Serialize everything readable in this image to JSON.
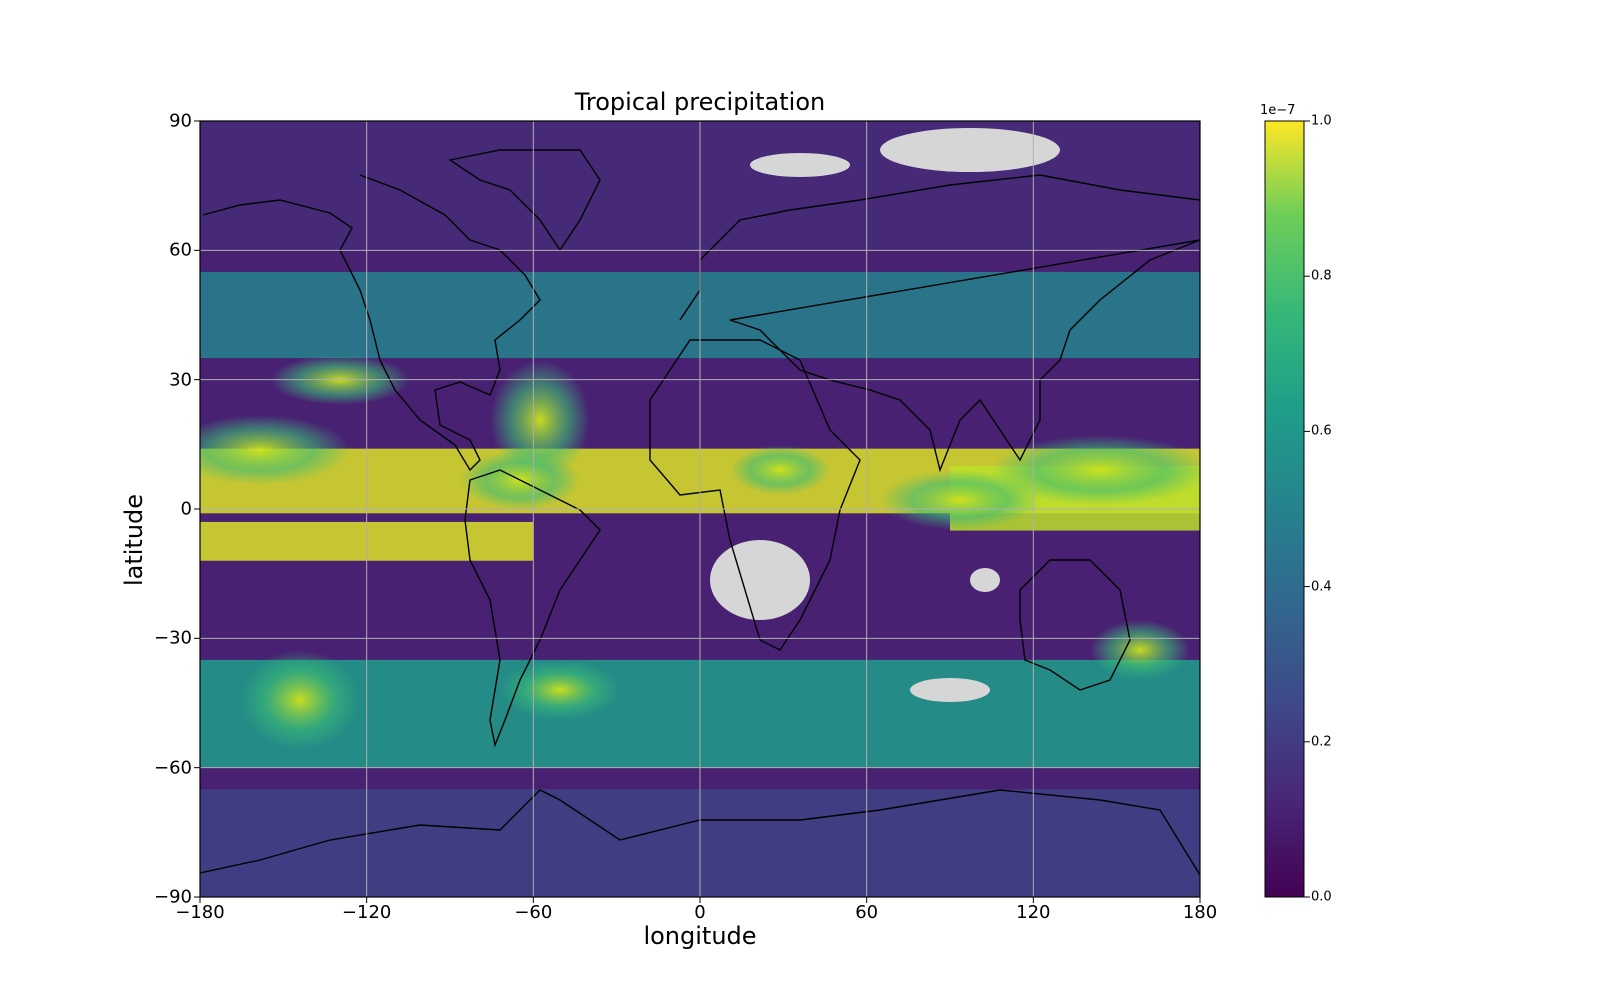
{
  "chart_data": {
    "type": "heatmap",
    "title": "Tropical precipitation",
    "xlabel": "longitude",
    "ylabel": "latitude",
    "xlim": [
      -180,
      180
    ],
    "ylim": [
      -90,
      90
    ],
    "x_ticks": [
      "−180",
      "−120",
      "−60",
      "0",
      "60",
      "120",
      "180"
    ],
    "x_tick_values": [
      -180,
      -120,
      -60,
      0,
      60,
      120,
      180
    ],
    "y_ticks": [
      "90",
      "60",
      "30",
      "0",
      "−30",
      "−60",
      "−90"
    ],
    "y_tick_values": [
      90,
      60,
      30,
      0,
      -30,
      -60,
      -90
    ],
    "grid": true,
    "colormap": "viridis",
    "missing_value_color": "#d6d6d6",
    "colorbar": {
      "placement": "right",
      "multiplier": "1e−7",
      "ticks": [
        "0.0",
        "0.2",
        "0.4",
        "0.6",
        "0.8",
        "1.0"
      ],
      "tick_values": [
        0.0,
        0.2,
        0.4,
        0.6,
        0.8,
        1.0
      ],
      "range": [
        0.0,
        1.0
      ]
    },
    "bands": [
      {
        "lon": [
          -180,
          180
        ],
        "lat": [
          -1,
          14
        ],
        "value": 0.95
      },
      {
        "lon": [
          -180,
          -60
        ],
        "lat": [
          -12,
          -3
        ],
        "value": 0.95
      },
      {
        "lon": [
          90,
          180
        ],
        "lat": [
          -5,
          10
        ],
        "value": 0.9
      },
      {
        "lon": [
          -180,
          180
        ],
        "lat": [
          -60,
          -35
        ],
        "value": 0.55
      },
      {
        "lon": [
          -180,
          180
        ],
        "lat": [
          35,
          55
        ],
        "value": 0.45
      },
      {
        "lon": [
          -180,
          180
        ],
        "lat": [
          60,
          90
        ],
        "value": 0.12
      },
      {
        "lon": [
          -180,
          180
        ],
        "lat": [
          -90,
          -65
        ],
        "value": 0.2
      }
    ]
  }
}
